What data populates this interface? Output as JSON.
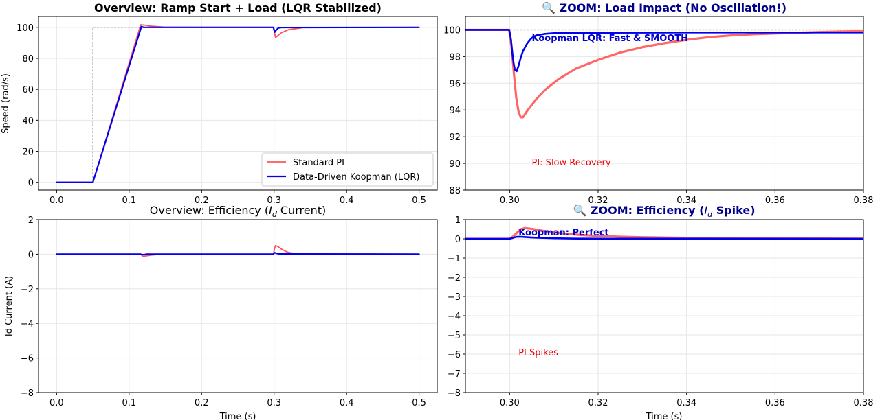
{
  "chart_data": [
    {
      "type": "line",
      "title": "Overview: Ramp Start + Load (LQR Stabilized)",
      "title_bold": true,
      "xlabel": "",
      "ylabel": "Speed (rad/s)",
      "xlim": [
        -0.025,
        0.525
      ],
      "ylim": [
        -5,
        107
      ],
      "xticks": [
        0.0,
        0.1,
        0.2,
        0.3,
        0.4,
        0.5
      ],
      "xtick_labels": [
        "0.0",
        "0.1",
        "0.2",
        "0.3",
        "0.4",
        "0.5"
      ],
      "yticks": [
        0,
        20,
        40,
        60,
        80,
        100
      ],
      "ytick_labels": [
        "0",
        "20",
        "40",
        "60",
        "80",
        "100"
      ],
      "grid": true,
      "legend": "bottom-right",
      "series": [
        {
          "name": "",
          "role": "reference",
          "color": "#aaaaaa",
          "dashed": true,
          "x": [
            0,
            0.05,
            0.05,
            0.5
          ],
          "y": [
            0,
            0,
            100,
            100
          ]
        },
        {
          "name": "Standard PI",
          "color": "#ff5555",
          "width": 1.8,
          "x": [
            0,
            0.05,
            0.116,
            0.12,
            0.13,
            0.15,
            0.29,
            0.299,
            0.302,
            0.305,
            0.31,
            0.32,
            0.34,
            0.5
          ],
          "y": [
            0,
            0,
            101.6,
            101.5,
            100.8,
            100.1,
            100,
            100,
            93.4,
            94.6,
            96.5,
            98.5,
            99.8,
            100
          ]
        },
        {
          "name": "Data-Driven Koopman (LQR)",
          "color": "#0000ee",
          "width": 2.2,
          "x": [
            0,
            0.05,
            0.117,
            0.12,
            0.299,
            0.301,
            0.303,
            0.306,
            0.31,
            0.5
          ],
          "y": [
            0,
            0,
            100.5,
            100,
            100,
            96.9,
            98.3,
            99.6,
            99.9,
            100
          ]
        }
      ]
    },
    {
      "type": "line",
      "title": "🔍 ZOOM: Load Impact (No Oscillation!)",
      "title_bold": true,
      "title_color": "#00008b",
      "xlabel": "",
      "ylabel": "",
      "xlim": [
        0.29,
        0.38
      ],
      "ylim": [
        88,
        101
      ],
      "xticks": [
        0.3,
        0.32,
        0.34,
        0.36,
        0.38
      ],
      "xtick_labels": [
        "0.30",
        "0.32",
        "0.34",
        "0.36",
        "0.38"
      ],
      "yticks": [
        88,
        90,
        92,
        94,
        96,
        98,
        100
      ],
      "ytick_labels": [
        "88",
        "90",
        "92",
        "94",
        "96",
        "98",
        "100"
      ],
      "grid": true,
      "annotations": [
        {
          "text": "Koopman LQR: Fast & SMOOTH",
          "x": 0.305,
          "y": 99.4,
          "color": "#0000cc",
          "bold": true
        },
        {
          "text": "PI: Slow Recovery",
          "x": 0.305,
          "y": 90.1,
          "color": "#ee0000",
          "bold": false
        }
      ],
      "series": [
        {
          "name": "",
          "role": "reference",
          "color": "#aaaaaa",
          "dashed": true,
          "x": [
            0.29,
            0.38
          ],
          "y": [
            100,
            100
          ]
        },
        {
          "name": "Standard PI",
          "color": "#ff6666",
          "width": 3.2,
          "x": [
            0.29,
            0.2999,
            0.3005,
            0.301,
            0.3015,
            0.302,
            0.3025,
            0.303,
            0.304,
            0.306,
            0.308,
            0.311,
            0.315,
            0.32,
            0.325,
            0.33,
            0.335,
            0.34,
            0.345,
            0.35,
            0.355,
            0.36,
            0.365,
            0.37,
            0.375,
            0.38
          ],
          "y": [
            100,
            100,
            98.5,
            96.6,
            94.9,
            93.9,
            93.45,
            93.45,
            93.95,
            94.8,
            95.5,
            96.3,
            97.1,
            97.75,
            98.3,
            98.7,
            99.0,
            99.25,
            99.45,
            99.58,
            99.67,
            99.73,
            99.78,
            99.83,
            99.87,
            99.9
          ]
        },
        {
          "name": "Data-Driven Koopman (LQR)",
          "color": "#0000ee",
          "width": 2.6,
          "x": [
            0.29,
            0.2999,
            0.3003,
            0.3006,
            0.3009,
            0.3012,
            0.3016,
            0.302,
            0.3025,
            0.303,
            0.304,
            0.305,
            0.306,
            0.308,
            0.31,
            0.315,
            0.32,
            0.33,
            0.34,
            0.36,
            0.38
          ],
          "y": [
            100,
            100,
            99.3,
            98.3,
            97.5,
            97.0,
            96.9,
            97.3,
            97.9,
            98.4,
            99.0,
            99.4,
            99.58,
            99.7,
            99.75,
            99.77,
            99.78,
            99.79,
            99.8,
            99.8,
            99.8
          ]
        }
      ]
    },
    {
      "type": "line",
      "title": "Overview: Efficiency (I_d Current)",
      "title_parts": [
        "Overview: Efficiency (",
        "I",
        "d",
        " Current)"
      ],
      "title_bold": false,
      "xlabel": "Time (s)",
      "ylabel": "Id Current (A)",
      "xlim": [
        -0.025,
        0.525
      ],
      "ylim": [
        -8,
        2
      ],
      "xticks": [
        0.0,
        0.1,
        0.2,
        0.3,
        0.4,
        0.5
      ],
      "xtick_labels": [
        "0.0",
        "0.1",
        "0.2",
        "0.3",
        "0.4",
        "0.5"
      ],
      "yticks": [
        -8,
        -6,
        -4,
        -2,
        0,
        2
      ],
      "ytick_labels": [
        "−8",
        "−6",
        "−4",
        "−2",
        "0",
        "2"
      ],
      "grid": true,
      "series": [
        {
          "name": "Standard PI",
          "color": "#ff5555",
          "width": 1.8,
          "x": [
            0,
            0.115,
            0.117,
            0.119,
            0.123,
            0.13,
            0.14,
            0.15,
            0.299,
            0.3005,
            0.302,
            0.305,
            0.31,
            0.315,
            0.32,
            0.33,
            0.5
          ],
          "y": [
            0,
            0,
            -0.05,
            -0.12,
            -0.1,
            -0.06,
            -0.02,
            0,
            0,
            0.3,
            0.5,
            0.45,
            0.3,
            0.18,
            0.1,
            0.03,
            0
          ]
        },
        {
          "name": "Data-Driven Koopman (LQR)",
          "color": "#0000ee",
          "width": 2.2,
          "x": [
            0,
            0.116,
            0.118,
            0.121,
            0.124,
            0.299,
            0.3005,
            0.302,
            0.304,
            0.308,
            0.5
          ],
          "y": [
            0,
            0,
            -0.03,
            -0.02,
            0,
            0,
            0.08,
            0.07,
            0.04,
            0.01,
            0
          ]
        }
      ]
    },
    {
      "type": "line",
      "title": "🔍 ZOOM: Efficiency (I_d Spike)",
      "title_parts": [
        "🔍 ZOOM: Efficiency (",
        "I",
        "d",
        " Spike)"
      ],
      "title_bold": true,
      "title_color": "#00008b",
      "xlabel": "Time (s)",
      "ylabel": "",
      "xlim": [
        0.29,
        0.38
      ],
      "ylim": [
        -8,
        1
      ],
      "xticks": [
        0.3,
        0.32,
        0.34,
        0.36,
        0.38
      ],
      "xtick_labels": [
        "0.30",
        "0.32",
        "0.34",
        "0.36",
        "0.38"
      ],
      "yticks": [
        -8,
        -7,
        -6,
        -5,
        -4,
        -3,
        -2,
        -1,
        0,
        1
      ],
      "ytick_labels": [
        "−8",
        "−7",
        "−6",
        "−5",
        "−4",
        "−3",
        "−2",
        "−1",
        "0",
        "1"
      ],
      "grid": true,
      "annotations": [
        {
          "text": "Koopman: Perfect",
          "x": 0.302,
          "y": 0.35,
          "color": "#0000cc",
          "bold": true
        },
        {
          "text": "PI Spikes",
          "x": 0.302,
          "y": -5.9,
          "color": "#ee0000",
          "bold": false
        }
      ],
      "series": [
        {
          "name": "Standard PI",
          "color": "#ff6666",
          "width": 3.2,
          "x": [
            0.29,
            0.2999,
            0.3005,
            0.301,
            0.3015,
            0.302,
            0.3025,
            0.3035,
            0.305,
            0.308,
            0.312,
            0.316,
            0.32,
            0.325,
            0.33,
            0.34,
            0.35,
            0.36,
            0.38
          ],
          "y": [
            0,
            0,
            0.07,
            0.17,
            0.28,
            0.4,
            0.5,
            0.56,
            0.52,
            0.4,
            0.28,
            0.2,
            0.15,
            0.11,
            0.08,
            0.05,
            0.03,
            0.02,
            0.01
          ]
        },
        {
          "name": "Data-Driven Koopman (LQR)",
          "color": "#0000ee",
          "width": 2.6,
          "x": [
            0.29,
            0.2999,
            0.3005,
            0.301,
            0.3015,
            0.302,
            0.303,
            0.305,
            0.307,
            0.31,
            0.315,
            0.38
          ],
          "y": [
            0,
            0,
            0.03,
            0.07,
            0.1,
            0.11,
            0.1,
            0.07,
            0.05,
            0.03,
            0.01,
            0
          ]
        }
      ]
    }
  ],
  "legend_entries": [
    {
      "name": "Standard PI",
      "color": "#ff5555"
    },
    {
      "name": "Data-Driven Koopman (LQR)",
      "color": "#0000ee"
    }
  ]
}
